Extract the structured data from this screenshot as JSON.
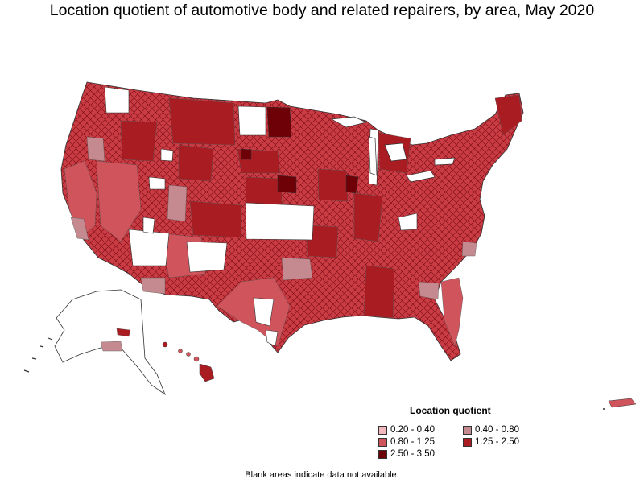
{
  "title": "Location quotient of automotive body and related repairers, by area, May 2020",
  "legend": {
    "title": "Location quotient",
    "items": [
      {
        "label": "0.20 - 0.40",
        "color": "#f2b8bd"
      },
      {
        "label": "0.40 - 0.80",
        "color": "#c58a8f"
      },
      {
        "label": "0.80 - 1.25",
        "color": "#d0545c"
      },
      {
        "label": "1.25 - 2.50",
        "color": "#a81c22"
      },
      {
        "label": "2.50 - 3.50",
        "color": "#6e0008"
      }
    ]
  },
  "note": "Blank areas indicate data not available."
}
